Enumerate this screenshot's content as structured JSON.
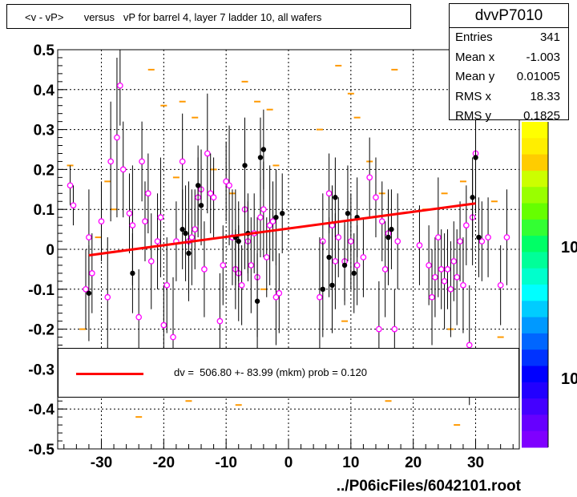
{
  "title": "<v - vP>       versus   vP for barrel 4, layer 7 ladder 10, all wafers",
  "stats": {
    "name": "dvvP7010",
    "rows": [
      {
        "label": "Entries",
        "value": "341"
      },
      {
        "label": "Mean x",
        "value": "-1.003"
      },
      {
        "label": "Mean y",
        "value": "0.01005"
      },
      {
        "label": "RMS x",
        "value": "18.33"
      },
      {
        "label": "RMS y",
        "value": "0.1825"
      }
    ]
  },
  "legend": {
    "text": "dv =  506.80 +- 83.99 (mkm) prob = 0.120",
    "color": "#ff0000"
  },
  "file_label": "../P06icFiles/6042101.root",
  "palette_labels": [
    "10",
    "10"
  ],
  "chart_data": {
    "type": "scatter",
    "xlim": [
      -37,
      37
    ],
    "ylim": [
      -0.5,
      0.5
    ],
    "xticks": [
      -30,
      -20,
      -10,
      0,
      10,
      20,
      30
    ],
    "yticks": [
      -0.5,
      -0.4,
      -0.3,
      -0.2,
      -0.1,
      0,
      0.1,
      0.2,
      0.3,
      0.4,
      0.5
    ],
    "xtick_labels": [
      "-30",
      "-20",
      "-10",
      "0",
      "10",
      "20",
      "30"
    ],
    "ytick_labels": [
      "-0.5",
      "-0.4",
      "-0.3",
      "-0.2",
      "-0.1",
      "0",
      "0.1",
      "0.2",
      "0.3",
      "0.4",
      "0.5"
    ],
    "grid": true,
    "fit_line": {
      "x": [
        -32,
        30
      ],
      "y": [
        -0.015,
        0.115
      ],
      "color": "#ff0000"
    },
    "open_points": [
      [
        -35,
        0.16,
        0.05
      ],
      [
        -34.5,
        0.11,
        0.05
      ],
      [
        -32.5,
        -0.1,
        0.1
      ],
      [
        -32,
        0.03,
        0.12
      ],
      [
        -31.5,
        -0.06,
        0.1
      ],
      [
        -30,
        0.07,
        0.1
      ],
      [
        -29,
        -0.12,
        0.15
      ],
      [
        -28.5,
        0.22,
        0.15
      ],
      [
        -27.5,
        0.28,
        0.2
      ],
      [
        -27,
        0.41,
        0.1
      ],
      [
        -26.5,
        0.2,
        0.12
      ],
      [
        -25.5,
        0.09,
        0.1
      ],
      [
        -25,
        0.06,
        0.15
      ],
      [
        -24,
        -0.17,
        0.12
      ],
      [
        -23.5,
        0.22,
        0.1
      ],
      [
        -23,
        0.07,
        0.1
      ],
      [
        -22.5,
        0.14,
        0.1
      ],
      [
        -22,
        -0.03,
        0.12
      ],
      [
        -21,
        0.02,
        0.12
      ],
      [
        -20.5,
        0.08,
        0.15
      ],
      [
        -20,
        -0.19,
        0.1
      ],
      [
        -19.5,
        -0.09,
        0.12
      ],
      [
        -18.5,
        -0.22,
        0.15
      ],
      [
        -18,
        0.02,
        0.1
      ],
      [
        -17,
        0.22,
        0.12
      ],
      [
        -16,
        0.02,
        0.15
      ],
      [
        -15.5,
        0.03,
        0.12
      ],
      [
        -15,
        0.05,
        0.1
      ],
      [
        -14.5,
        0.13,
        0.1
      ],
      [
        -14,
        0.15,
        0.1
      ],
      [
        -13.5,
        -0.05,
        0.12
      ],
      [
        -13,
        0.24,
        0.15
      ],
      [
        -12.5,
        0.14,
        0.1
      ],
      [
        -12,
        0.13,
        0.1
      ],
      [
        -11,
        -0.18,
        0.12
      ],
      [
        -10.5,
        -0.04,
        0.1
      ],
      [
        -10,
        0.17,
        0.1
      ],
      [
        -9.5,
        0.16,
        0.15
      ],
      [
        -9,
        0.03,
        0.12
      ],
      [
        -8.5,
        -0.05,
        0.1
      ],
      [
        -8,
        -0.06,
        0.12
      ],
      [
        -7.5,
        -0.09,
        0.1
      ],
      [
        -7,
        0.1,
        0.15
      ],
      [
        -6.5,
        0.02,
        0.1
      ],
      [
        -6,
        -0.04,
        0.12
      ],
      [
        -5.5,
        0.04,
        0.1
      ],
      [
        -5,
        -0.07,
        0.15
      ],
      [
        -4.5,
        0.08,
        0.1
      ],
      [
        -4,
        0.1,
        0.12
      ],
      [
        -3.5,
        -0.02,
        0.1
      ],
      [
        -3,
        0.06,
        0.15
      ],
      [
        -2.5,
        0.07,
        0.1
      ],
      [
        -2,
        -0.12,
        0.12
      ],
      [
        -1.5,
        -0.11,
        0.1
      ],
      [
        5,
        -0.12,
        0.15
      ],
      [
        5.5,
        0.02,
        0.12
      ],
      [
        6.5,
        0.14,
        0.1
      ],
      [
        7,
        0.06,
        0.1
      ],
      [
        7.5,
        -0.03,
        0.12
      ],
      [
        8,
        0.03,
        0.1
      ],
      [
        9,
        -0.03,
        0.1
      ],
      [
        10,
        0.02,
        0.12
      ],
      [
        11,
        -0.04,
        0.1
      ],
      [
        12,
        -0.02,
        0.1
      ],
      [
        13,
        0.18,
        0.1
      ],
      [
        14,
        0.13,
        0.1
      ],
      [
        14.5,
        -0.2,
        0.12
      ],
      [
        15,
        0.07,
        0.1
      ],
      [
        15.5,
        -0.05,
        0.12
      ],
      [
        16,
        0.04,
        0.1
      ],
      [
        17,
        -0.2,
        0.1
      ],
      [
        17.5,
        0.02,
        0.12
      ],
      [
        21,
        0.01,
        0.1
      ],
      [
        22.5,
        -0.04,
        0.1
      ],
      [
        23,
        -0.12,
        0.12
      ],
      [
        23.5,
        -0.07,
        0.1
      ],
      [
        24,
        0.03,
        0.15
      ],
      [
        24.5,
        -0.05,
        0.1
      ],
      [
        25,
        -0.08,
        0.12
      ],
      [
        25.5,
        -0.05,
        0.1
      ],
      [
        26,
        -0.1,
        0.12
      ],
      [
        26.5,
        -0.03,
        0.1
      ],
      [
        27,
        -0.07,
        0.12
      ],
      [
        27.5,
        0.02,
        0.1
      ],
      [
        28,
        -0.09,
        0.12
      ],
      [
        28.5,
        0.06,
        0.1
      ],
      [
        29,
        -0.24,
        0.15
      ],
      [
        29.5,
        0.08,
        0.12
      ],
      [
        30,
        0.24,
        0.15
      ],
      [
        31,
        0.02,
        0.1
      ],
      [
        32,
        0.03,
        0.1
      ],
      [
        34,
        -0.09,
        0.1
      ],
      [
        35,
        0.03,
        0.12
      ]
    ],
    "filled_points": [
      [
        -32,
        -0.11,
        0.12
      ],
      [
        -25,
        -0.06,
        0.1
      ],
      [
        -17,
        0.05,
        0.1
      ],
      [
        -16.5,
        0.04,
        0.12
      ],
      [
        -16,
        -0.01,
        0.1
      ],
      [
        -14.5,
        0.16,
        0.1
      ],
      [
        -14,
        0.11,
        0.1
      ],
      [
        -8.5,
        0.03,
        0.12
      ],
      [
        -8,
        0.02,
        0.1
      ],
      [
        -7,
        0.21,
        0.12
      ],
      [
        -6.5,
        0.04,
        0.1
      ],
      [
        -5,
        -0.13,
        0.12
      ],
      [
        -4.5,
        0.23,
        0.1
      ],
      [
        -4,
        0.25,
        0.1
      ],
      [
        -2,
        0.08,
        0.12
      ],
      [
        -1,
        0.09,
        0.1
      ],
      [
        5.5,
        -0.1,
        0.12
      ],
      [
        6.5,
        -0.02,
        0.1
      ],
      [
        7,
        -0.09,
        0.12
      ],
      [
        7.5,
        0.13,
        0.1
      ],
      [
        9,
        -0.04,
        0.1
      ],
      [
        9.5,
        0.09,
        0.12
      ],
      [
        10.5,
        -0.06,
        0.1
      ],
      [
        11,
        0.08,
        0.1
      ],
      [
        16,
        0.03,
        0.12
      ],
      [
        16.5,
        0.05,
        0.1
      ],
      [
        29.5,
        0.13,
        0.1
      ],
      [
        30,
        0.23,
        0.12
      ],
      [
        30.5,
        0.03,
        0.1
      ]
    ],
    "orange_marks": [
      [
        -35,
        0.21
      ],
      [
        -33,
        -0.2
      ],
      [
        -30.5,
        0.03
      ],
      [
        -29,
        0.17
      ],
      [
        -28,
        0.1
      ],
      [
        -25,
        -0.3
      ],
      [
        -24,
        -0.42
      ],
      [
        -22,
        0.45
      ],
      [
        -21,
        -0.33
      ],
      [
        -20,
        0.36
      ],
      [
        -19,
        -0.25
      ],
      [
        -18,
        0.18
      ],
      [
        -17,
        0.37
      ],
      [
        -16,
        -0.38
      ],
      [
        -15,
        0.33
      ],
      [
        -14,
        -0.27
      ],
      [
        -12,
        0.2
      ],
      [
        -11,
        -0.35
      ],
      [
        -9,
        0.14
      ],
      [
        -8,
        -0.39
      ],
      [
        -7,
        0.42
      ],
      [
        -6,
        -0.29
      ],
      [
        -5,
        0.37
      ],
      [
        -4,
        -0.1
      ],
      [
        -3,
        0.35
      ],
      [
        -2,
        0.21
      ],
      [
        -1,
        -0.28
      ],
      [
        5,
        0.3
      ],
      [
        6,
        -0.3
      ],
      [
        8,
        0.46
      ],
      [
        9,
        -0.18
      ],
      [
        10,
        0.39
      ],
      [
        11,
        0.33
      ],
      [
        12,
        -0.26
      ],
      [
        13,
        0.22
      ],
      [
        14,
        -0.35
      ],
      [
        15,
        0.14
      ],
      [
        16,
        -0.38
      ],
      [
        17,
        0.45
      ],
      [
        22,
        0.1
      ],
      [
        24,
        -0.32
      ],
      [
        25,
        0.14
      ],
      [
        26,
        -0.2
      ],
      [
        27,
        -0.44
      ],
      [
        28,
        0.17
      ],
      [
        29,
        0.43
      ],
      [
        30,
        -0.3
      ],
      [
        33,
        0.12
      ],
      [
        34,
        -0.22
      ]
    ]
  }
}
